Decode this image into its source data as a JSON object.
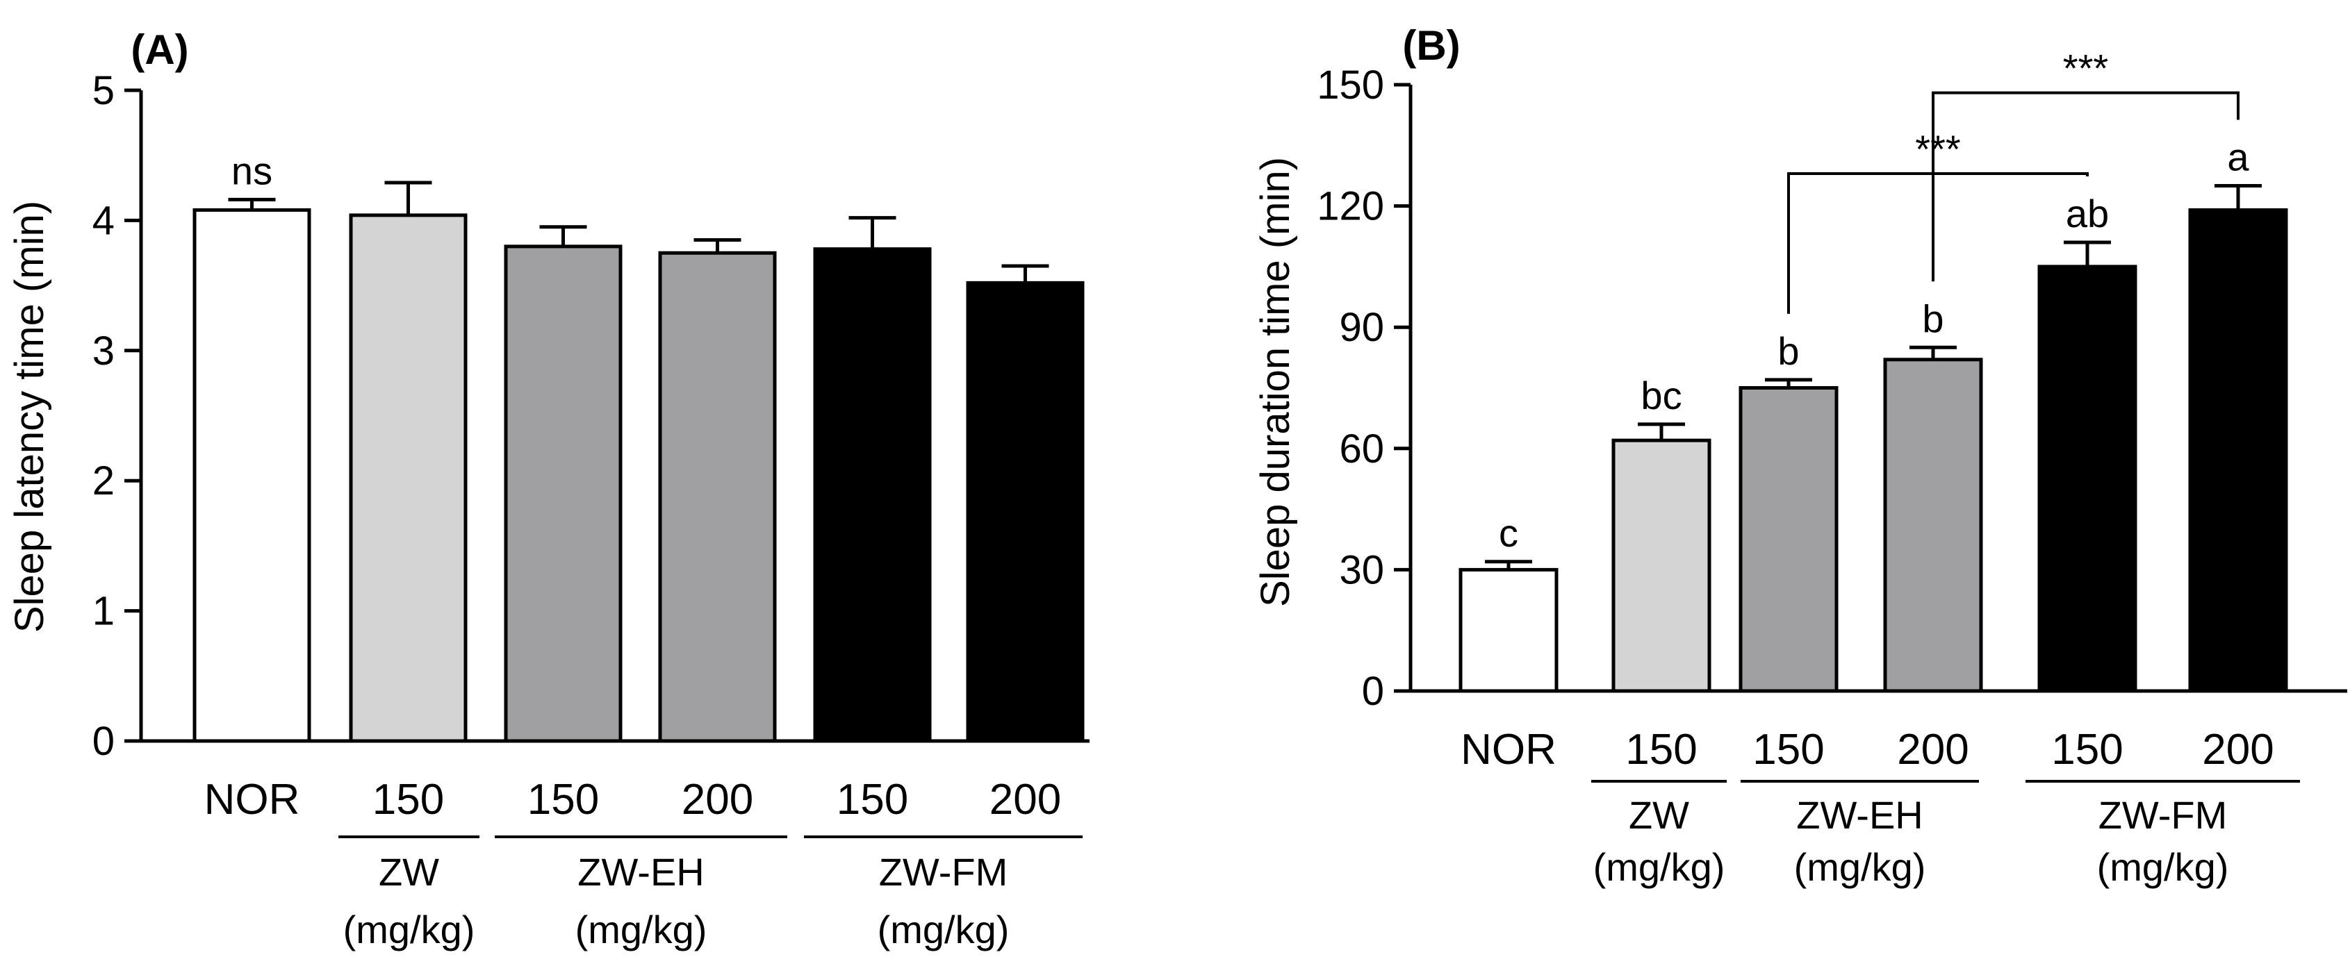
{
  "chart_data": [
    {
      "panel": "(A)",
      "type": "bar",
      "title": "",
      "ylabel": "Sleep latency time (min)",
      "xlabel": "",
      "ylim": [
        0,
        5
      ],
      "yticks": [
        0,
        1,
        2,
        3,
        4,
        5
      ],
      "yticks_labels": [
        "0",
        "1",
        "2",
        "3",
        "4",
        "5"
      ],
      "grid": false,
      "categories": [
        "NOR",
        "150",
        "150",
        "200",
        "150",
        "200"
      ],
      "groups": [
        {
          "label": "ZW",
          "unit": "(mg/kg)",
          "members": [
            1
          ]
        },
        {
          "label": "ZW-EH",
          "unit": "(mg/kg)",
          "members": [
            2,
            3
          ]
        },
        {
          "label": "ZW-FM",
          "unit": "(mg/kg)",
          "members": [
            4,
            5
          ]
        }
      ],
      "values": [
        4.08,
        4.04,
        3.8,
        3.75,
        3.78,
        3.52
      ],
      "errors": [
        0.08,
        0.25,
        0.15,
        0.1,
        0.24,
        0.13
      ],
      "colors": [
        "#ffffff",
        "#d4d4d4",
        "#a0a0a2",
        "#a0a0a2",
        "#000000",
        "#000000"
      ],
      "annotations": [
        {
          "text": "ns",
          "bar": 0
        }
      ],
      "brackets": []
    },
    {
      "panel": "(B)",
      "type": "bar",
      "title": "",
      "ylabel": "Sleep duration time (min)",
      "xlabel": "",
      "ylim": [
        0,
        150
      ],
      "yticks": [
        0,
        30,
        60,
        90,
        120,
        150
      ],
      "yticks_labels": [
        "0",
        "30",
        "60",
        "90",
        "120",
        "150"
      ],
      "grid": false,
      "categories": [
        "NOR",
        "150",
        "150",
        "200",
        "150",
        "200"
      ],
      "groups": [
        {
          "label": "ZW",
          "unit": "(mg/kg)",
          "members": [
            1
          ]
        },
        {
          "label": "ZW-EH",
          "unit": "(mg/kg)",
          "members": [
            2,
            3
          ]
        },
        {
          "label": "ZW-FM",
          "unit": "(mg/kg)",
          "members": [
            4,
            5
          ]
        }
      ],
      "values": [
        30,
        62,
        75,
        82,
        105,
        119
      ],
      "errors": [
        2,
        4,
        2,
        3,
        6,
        6
      ],
      "colors": [
        "#ffffff",
        "#d4d4d4",
        "#a0a0a2",
        "#a0a0a2",
        "#000000",
        "#000000"
      ],
      "annotations": [
        {
          "text": "c",
          "bar": 0
        },
        {
          "text": "bc",
          "bar": 1
        },
        {
          "text": "b",
          "bar": 2
        },
        {
          "text": "b",
          "bar": 3
        },
        {
          "text": "ab",
          "bar": 4
        },
        {
          "text": "a",
          "bar": 5
        }
      ],
      "brackets": [
        {
          "from": 2,
          "to": 4,
          "at": 128,
          "text": "***"
        },
        {
          "from": 3,
          "to": 5,
          "at": 148,
          "text": "***"
        }
      ]
    }
  ]
}
